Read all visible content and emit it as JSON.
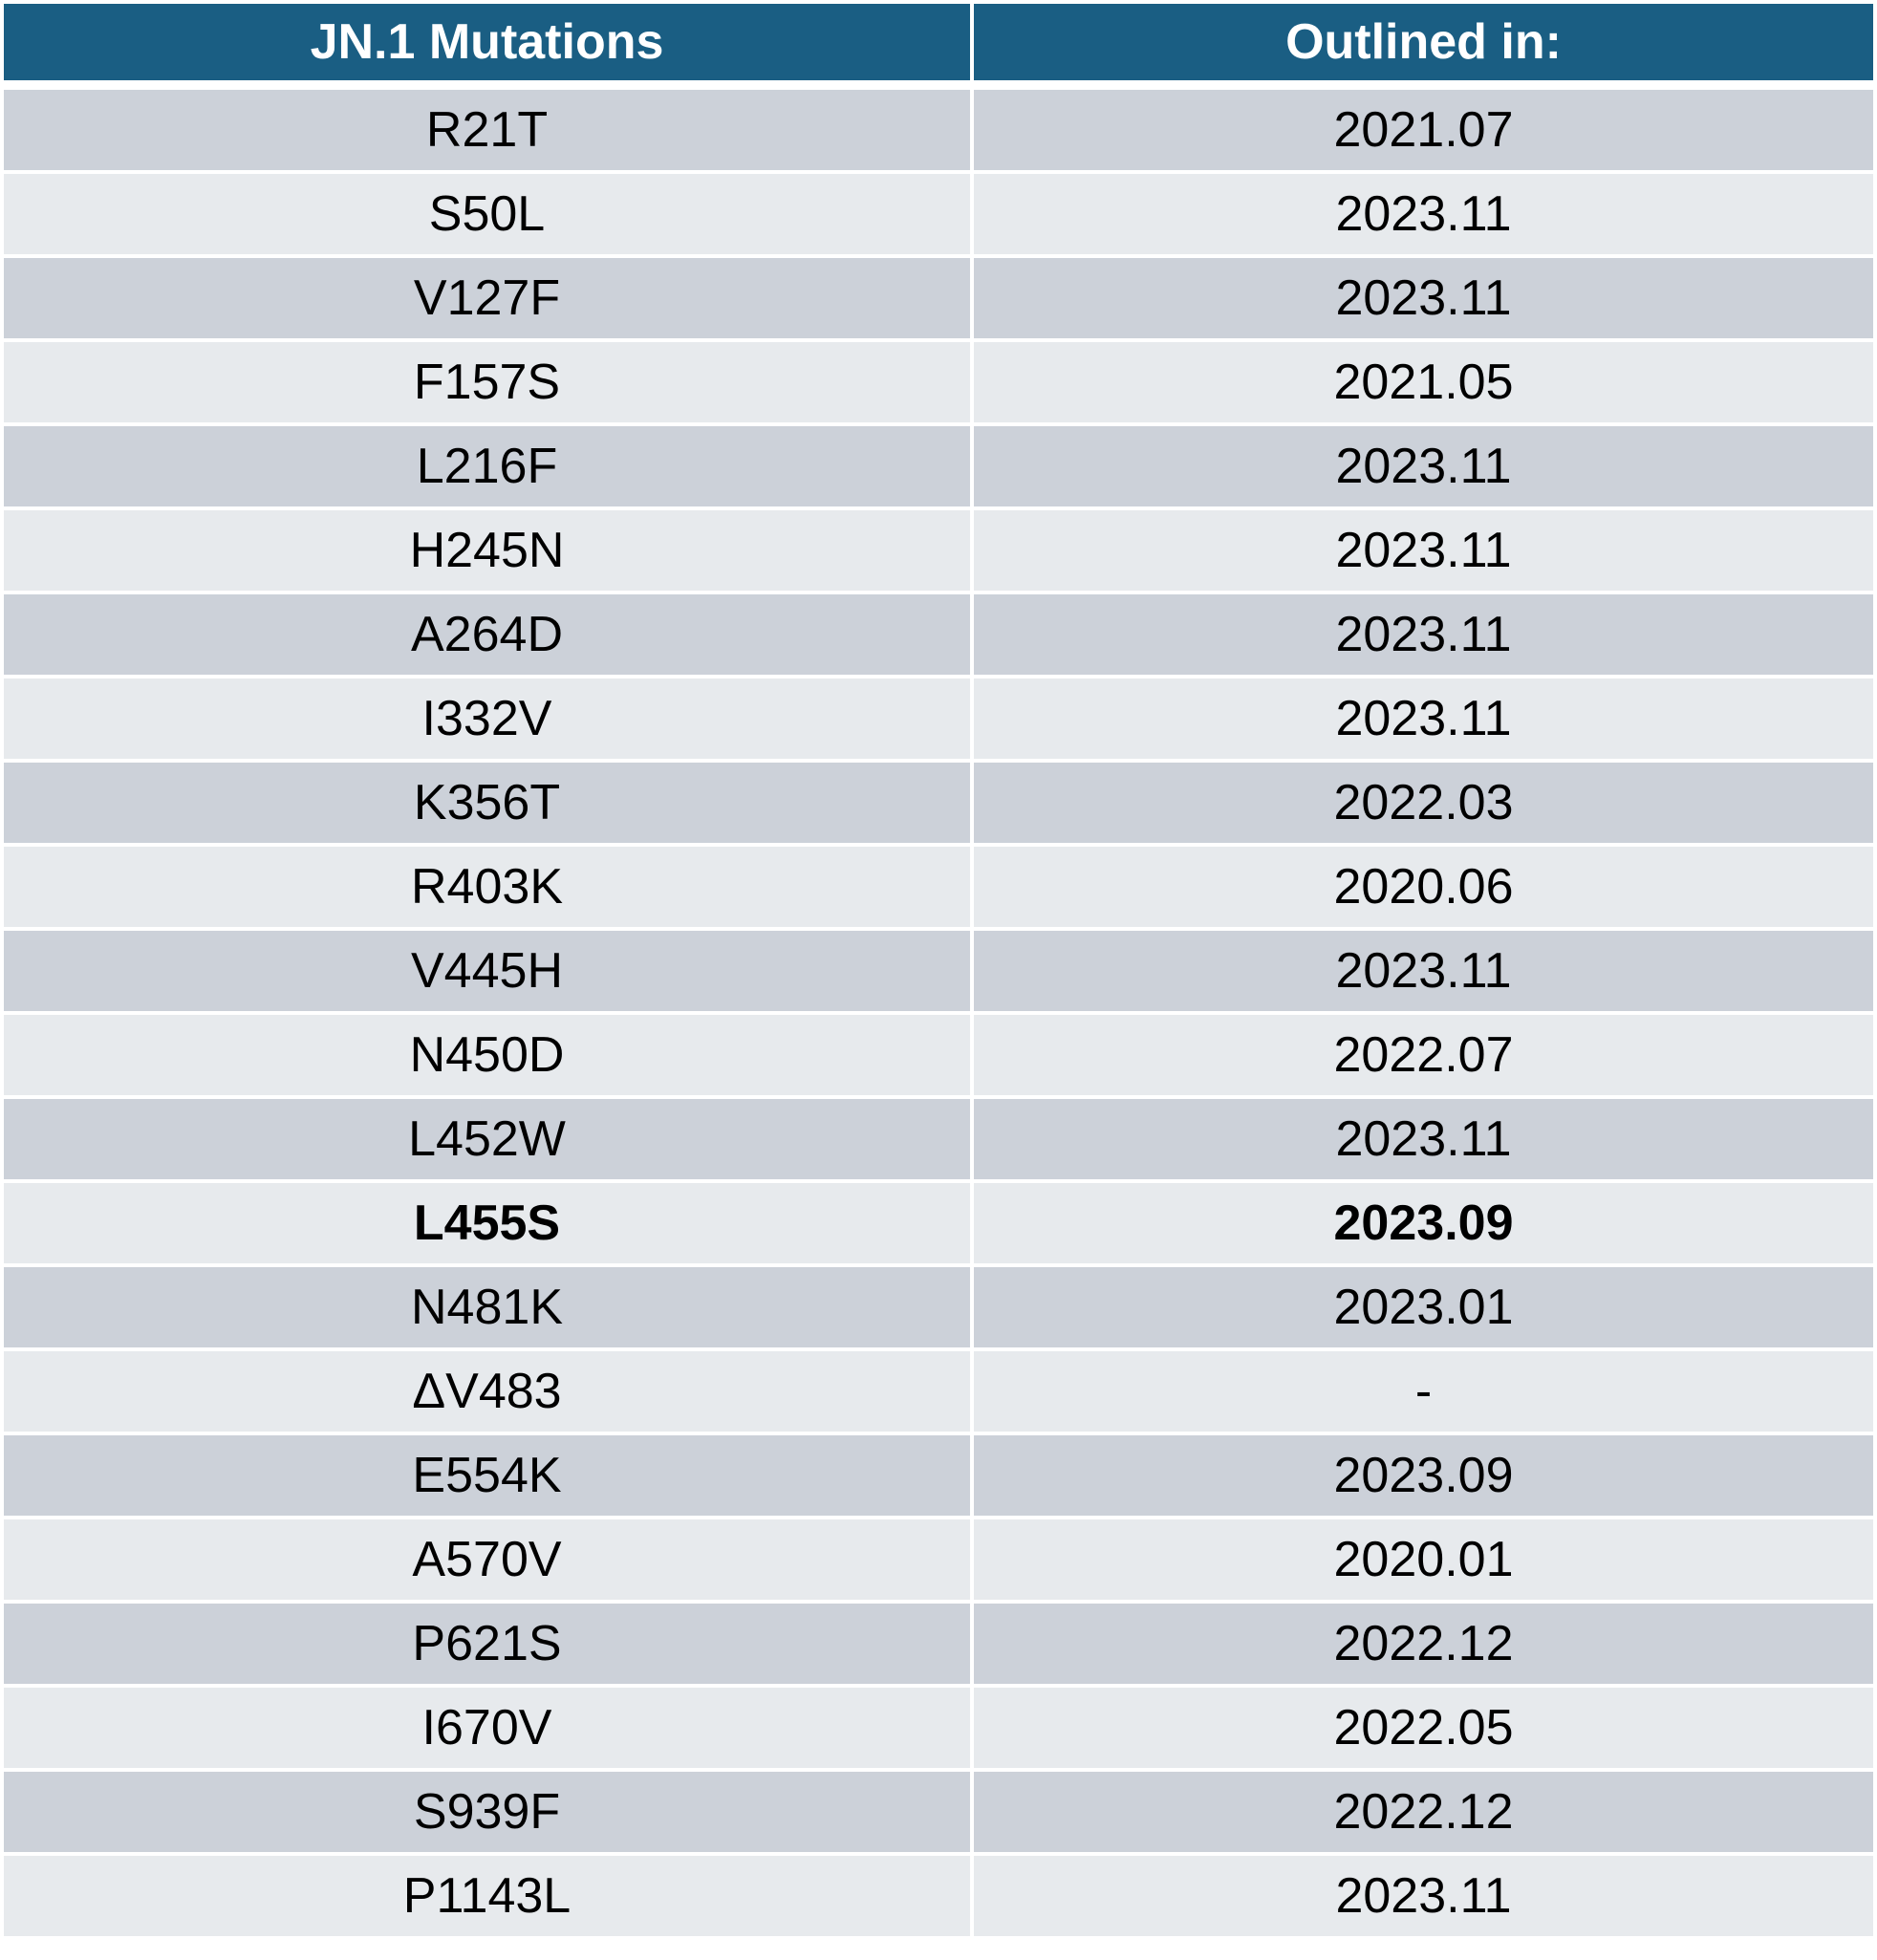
{
  "table": {
    "headers": [
      "JN.1 Mutations",
      "Outlined in:"
    ],
    "rows": [
      {
        "mutation": "R21T",
        "date": "2021.07"
      },
      {
        "mutation": "S50L",
        "date": "2023.11"
      },
      {
        "mutation": "V127F",
        "date": "2023.11"
      },
      {
        "mutation": "F157S",
        "date": "2021.05"
      },
      {
        "mutation": "L216F",
        "date": "2023.11"
      },
      {
        "mutation": "H245N",
        "date": "2023.11"
      },
      {
        "mutation": "A264D",
        "date": "2023.11"
      },
      {
        "mutation": "I332V",
        "date": "2023.11"
      },
      {
        "mutation": "K356T",
        "date": "2022.03"
      },
      {
        "mutation": "R403K",
        "date": "2020.06"
      },
      {
        "mutation": "V445H",
        "date": "2023.11"
      },
      {
        "mutation": "N450D",
        "date": "2022.07"
      },
      {
        "mutation": "L452W",
        "date": "2023.11"
      },
      {
        "mutation": "L455S",
        "date": "2023.09",
        "bold": true
      },
      {
        "mutation": "N481K",
        "date": "2023.01"
      },
      {
        "mutation": "ΔV483",
        "date": "-"
      },
      {
        "mutation": "E554K",
        "date": "2023.09"
      },
      {
        "mutation": "A570V",
        "date": "2020.01"
      },
      {
        "mutation": "P621S",
        "date": "2022.12"
      },
      {
        "mutation": "I670V",
        "date": "2022.05"
      },
      {
        "mutation": "S939F",
        "date": "2022.12"
      },
      {
        "mutation": "P1143L",
        "date": "2023.11"
      }
    ]
  },
  "colors": {
    "header_bg": "#1a5e83",
    "header_text": "#ffffff",
    "row_dark": "#ccd1d9",
    "row_light": "#e7eaed"
  }
}
